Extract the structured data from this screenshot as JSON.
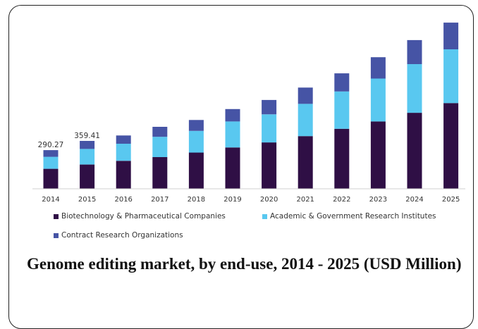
{
  "chart_data": {
    "type": "bar",
    "stacked": true,
    "title": "Genome editing market, by end-use, 2014 - 2025 (USD Million)",
    "xlabel": "",
    "ylabel": "",
    "ylim": [
      0,
      1400
    ],
    "grid": false,
    "legend_position": "bottom",
    "categories": [
      "2014",
      "2015",
      "2016",
      "2017",
      "2018",
      "2019",
      "2020",
      "2021",
      "2022",
      "2023",
      "2024",
      "2025"
    ],
    "series": [
      {
        "name": "Biotechnology & Pharmaceutical Companies",
        "color": "#2f0f45",
        "values": [
          150,
          182,
          210,
          238,
          272,
          310,
          348,
          395,
          450,
          505,
          570,
          643
        ]
      },
      {
        "name": "Academic & Government Research Institutes",
        "color": "#59c8f0",
        "values": [
          90,
          117,
          128,
          152,
          162,
          195,
          210,
          242,
          280,
          322,
          365,
          403
        ]
      },
      {
        "name": "Contract Research Organizations",
        "color": "#4654a5",
        "values": [
          50.27,
          60.41,
          62,
          75,
          82,
          93,
          108,
          122,
          136,
          160,
          180,
          200
        ]
      }
    ],
    "data_labels": [
      {
        "category": "2014",
        "text": "290.27"
      },
      {
        "category": "2015",
        "text": "359.41"
      }
    ]
  }
}
